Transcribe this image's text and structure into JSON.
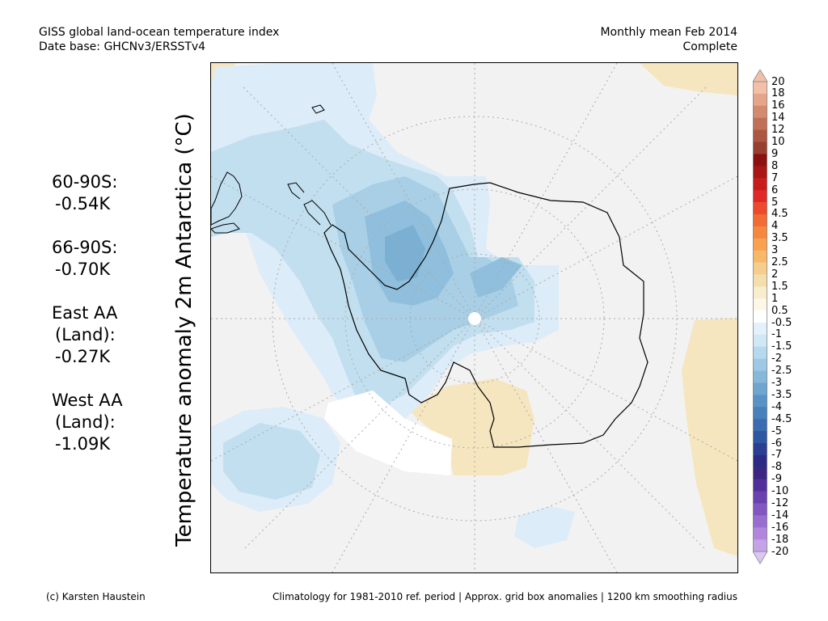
{
  "header": {
    "title_line1": "GISS global land-ocean temperature index",
    "title_line2": "Date base: GHCNv3/ERSSTv4",
    "period_line1": "Monthly mean Feb 2014",
    "period_line2": "Complete"
  },
  "axis_label": "Temperature anomaly 2m Antarctica (°C)",
  "stats": [
    {
      "name": "60-90S:",
      "value": "-0.54K"
    },
    {
      "name": "66-90S:",
      "value": "-0.70K"
    },
    {
      "name": "East AA",
      "sub": "(Land):",
      "value": "-0.27K"
    },
    {
      "name": "West AA",
      "sub": "(Land):",
      "value": "-1.09K"
    }
  ],
  "colorbar": {
    "labels": [
      "20",
      "18",
      "16",
      "14",
      "12",
      "10",
      "9",
      "8",
      "7",
      "6",
      "5",
      "4.5",
      "4",
      "3.5",
      "3",
      "2.5",
      "2",
      "1.5",
      "1",
      "0.5",
      "-0.5",
      "-1",
      "-1.5",
      "-2",
      "-2.5",
      "-3",
      "-3.5",
      "-4",
      "-4.5",
      "-5",
      "-6",
      "-7",
      "-8",
      "-9",
      "-10",
      "-12",
      "-14",
      "-16",
      "-18",
      "-20"
    ],
    "colors": [
      "#f2c0a8",
      "#e4a58a",
      "#d28b6e",
      "#c07056",
      "#ab5742",
      "#983f30",
      "#8c1010",
      "#aa1515",
      "#c81c1c",
      "#e02828",
      "#ec4a2c",
      "#f26a34",
      "#f5873f",
      "#f8a14e",
      "#f7b868",
      "#f5cd8c",
      "#f4dfac",
      "#f8edcc",
      "#fdf7e8",
      "#ffffff",
      "#e3f1fb",
      "#d0e8f6",
      "#b6d9ee",
      "#9dc9e4",
      "#86b8da",
      "#6ea6d0",
      "#5993c5",
      "#4780ba",
      "#3a6caf",
      "#2e57a1",
      "#2a3f92",
      "#2c2b84",
      "#3c2682",
      "#52309a",
      "#6a42b0",
      "#8357c2",
      "#9a6dd0",
      "#b087dc",
      "#c4a3e6"
    ],
    "top_arrow": "#f2c0a8",
    "bottom_arrow": "#d8c8f2"
  },
  "map": {
    "colors": {
      "neutral": "#f2f2f2",
      "warm_light": "#f5e6c0",
      "cold_1": "#dcecf8",
      "cold_2": "#c2dfef",
      "cold_3": "#a8cfe6",
      "cold_4": "#8fbfdc",
      "cold_5": "#7bb0d3",
      "coast": "#000000",
      "grid": "#aaaaaa",
      "missing": "#ffffff"
    }
  },
  "footer": {
    "left": "(c) Karsten Haustein",
    "right": "Climatology for 1981-2010 ref. period | Approx. grid box anomalies | 1200 km smoothing radius"
  }
}
